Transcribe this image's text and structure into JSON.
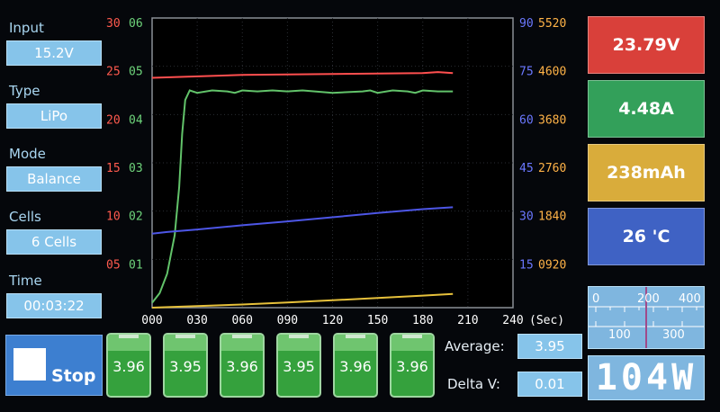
{
  "settings": [
    {
      "label": "Input",
      "value": "15.2V"
    },
    {
      "label": "Type",
      "value": "LiPo"
    },
    {
      "label": "Mode",
      "value": "Balance"
    },
    {
      "label": "Cells",
      "value": "6 Cells"
    },
    {
      "label": "Time",
      "value": "00:03:22"
    }
  ],
  "stop_label": "Stop",
  "cells": [
    "3.96",
    "3.95",
    "3.96",
    "3.95",
    "3.96",
    "3.96"
  ],
  "summary": {
    "average_label": "Average:",
    "average_value": "3.95",
    "delta_label": "Delta V:",
    "delta_value": "0.01"
  },
  "readouts": [
    {
      "value": "23.79V",
      "color": "#d9403a"
    },
    {
      "value": "4.48A",
      "color": "#33a05a"
    },
    {
      "value": "238mAh",
      "color": "#d9ac3b"
    },
    {
      "value": "26 'C",
      "color": "#3f62c4"
    }
  ],
  "meter": {
    "top_labels": [
      "0",
      "200",
      "400"
    ],
    "bottom_labels": [
      "100",
      "300"
    ]
  },
  "power": "104W",
  "chart_data": {
    "type": "line",
    "x_unit": "(Sec)",
    "x_ticks": [
      "000",
      "030",
      "060",
      "090",
      "120",
      "150",
      "180",
      "210",
      "240"
    ],
    "xlim": [
      0,
      240
    ],
    "left_axis_red": {
      "ticks": [
        "30",
        "25",
        "20",
        "15",
        "10",
        "05"
      ],
      "color": "#ff5a4e"
    },
    "left_axis_green": {
      "ticks": [
        "06",
        "05",
        "04",
        "03",
        "02",
        "01"
      ],
      "color": "#6ed47b"
    },
    "right_axis_blue": {
      "ticks": [
        "90",
        "75",
        "60",
        "45",
        "30",
        "15"
      ],
      "color": "#6b78ff"
    },
    "right_axis_orange": {
      "ticks": [
        "5520",
        "4600",
        "3680",
        "2760",
        "1840",
        "0920"
      ],
      "color": "#ffb347"
    },
    "grid": true,
    "series": [
      {
        "axis": "red",
        "color": "#ff4f4f",
        "x": [
          0,
          60,
          120,
          180,
          190,
          200
        ],
        "y": [
          23.8,
          24.1,
          24.2,
          24.3,
          24.4,
          24.3
        ]
      },
      {
        "axis": "green",
        "color": "#62c36a",
        "x": [
          0,
          5,
          10,
          15,
          18,
          20,
          22,
          25,
          30,
          40,
          50,
          55,
          60,
          70,
          80,
          90,
          100,
          120,
          140,
          145,
          150,
          160,
          170,
          175,
          180,
          190,
          200
        ],
        "y": [
          0.1,
          0.3,
          0.7,
          1.5,
          2.5,
          3.6,
          4.3,
          4.5,
          4.45,
          4.5,
          4.48,
          4.45,
          4.5,
          4.48,
          4.5,
          4.48,
          4.5,
          4.45,
          4.48,
          4.5,
          4.45,
          4.5,
          4.48,
          4.45,
          4.5,
          4.48,
          4.48
        ]
      },
      {
        "axis": "blue",
        "color": "#4d56e6",
        "x": [
          0,
          10,
          30,
          60,
          90,
          120,
          150,
          180,
          200
        ],
        "y": [
          23,
          23.5,
          24.3,
          25.6,
          26.8,
          28.1,
          29.4,
          30.6,
          31.2
        ]
      },
      {
        "axis": "orange",
        "color": "#e7c13b",
        "x": [
          0,
          30,
          60,
          90,
          120,
          150,
          180,
          200
        ],
        "y": [
          0,
          30,
          60,
          100,
          140,
          185,
          230,
          260
        ]
      }
    ],
    "red_range": [
      0,
      30
    ],
    "green_range": [
      0,
      6
    ],
    "blue_range": [
      0,
      90
    ],
    "orange_range": [
      0,
      5520
    ]
  }
}
